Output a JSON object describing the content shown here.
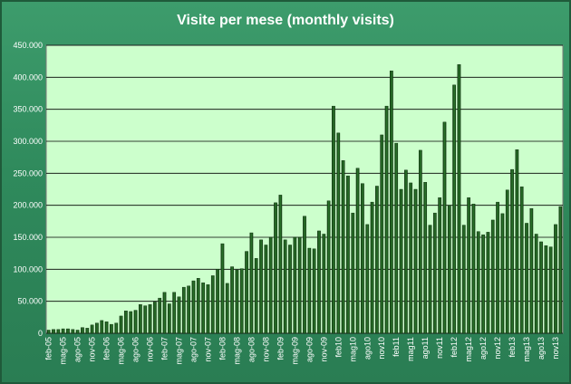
{
  "chart_data": {
    "type": "bar",
    "title": "Visite per mese (monthly visits)",
    "xlabel": "",
    "ylabel": "",
    "ylim": [
      0,
      450000
    ],
    "y_ticks": [
      "0",
      "50.000",
      "100.000",
      "150.000",
      "200.000",
      "250.000",
      "300.000",
      "350.000",
      "400.000",
      "450.000"
    ],
    "x_tick_labels": [
      "feb-05",
      "mag-05",
      "ago-05",
      "nov-05",
      "feb-06",
      "mag-06",
      "ago-06",
      "nov-06",
      "feb-07",
      "mag-07",
      "ago-07",
      "nov-07",
      "feb-08",
      "mag-08",
      "ago-08",
      "nov-08",
      "feb-09",
      "mag-09",
      "ago-09",
      "nov-09",
      "feb10",
      "mag10",
      "ago10",
      "nov10",
      "feb11",
      "mag11",
      "ago11",
      "nov11",
      "feb12",
      "mag12",
      "ago12",
      "nov12",
      "feb13",
      "mag13",
      "ago13",
      "nov13"
    ],
    "grid": true,
    "legend": "none",
    "colors": {
      "bar_fill": "#1e5c1e",
      "bar_highlight": "#5aa05a",
      "plot_background": "#ccffcc",
      "frame_background": "#2f8a5c",
      "gridline": "#000000",
      "text": "#ffffff"
    },
    "values": [
      5000,
      6000,
      6000,
      7000,
      7000,
      6000,
      5000,
      9000,
      8000,
      13000,
      16000,
      20000,
      18000,
      14000,
      16000,
      27000,
      35000,
      34000,
      36000,
      45000,
      43000,
      45000,
      49000,
      55000,
      64000,
      46000,
      64000,
      57000,
      72000,
      74000,
      82000,
      86000,
      79000,
      76000,
      90000,
      100000,
      140000,
      78000,
      104000,
      99000,
      101000,
      128000,
      157000,
      117000,
      146000,
      138000,
      150000,
      204000,
      216000,
      146000,
      138000,
      150000,
      150000,
      183000,
      133000,
      132000,
      160000,
      155000,
      207000,
      355000,
      313000,
      270000,
      246000,
      188000,
      258000,
      234000,
      170000,
      205000,
      230000,
      310000,
      355000,
      410000,
      297000,
      225000,
      255000,
      235000,
      225000,
      286000,
      236000,
      169000,
      188000,
      212000,
      330000,
      200000,
      388000,
      420000,
      169000,
      212000,
      202000,
      159000,
      154000,
      158000,
      177000,
      205000,
      187000,
      224000,
      256000,
      287000,
      229000,
      172000,
      195000,
      155000,
      143000,
      137000,
      135000,
      170000,
      198000
    ]
  }
}
